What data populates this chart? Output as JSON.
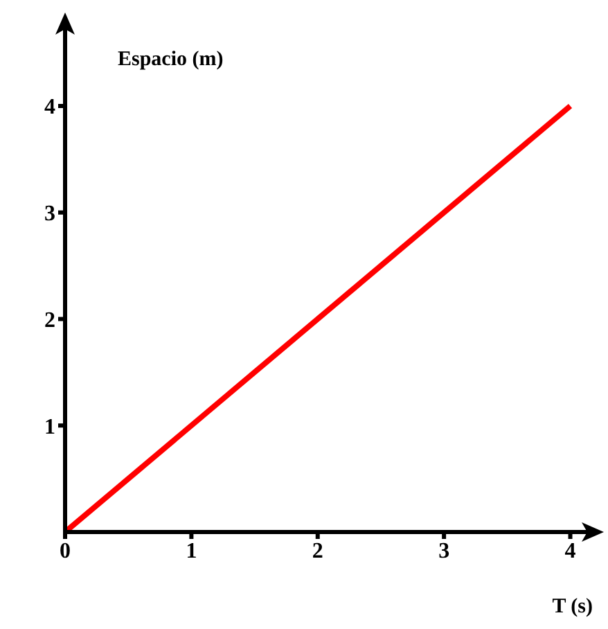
{
  "chart_data": {
    "type": "line",
    "xlabel": "T (s)",
    "ylabel": "Espacio (m)",
    "x": [
      0,
      4
    ],
    "series": [
      {
        "color": "#ff0000",
        "values": [
          0,
          4
        ]
      }
    ],
    "xlim": [
      0,
      4.2
    ],
    "ylim": [
      0,
      4.8
    ],
    "xticks": [
      0,
      1,
      2,
      3,
      4
    ],
    "yticks": [
      1,
      2,
      3,
      4
    ],
    "grid": false,
    "legend": false,
    "marker": "none",
    "line_style": "solid"
  }
}
